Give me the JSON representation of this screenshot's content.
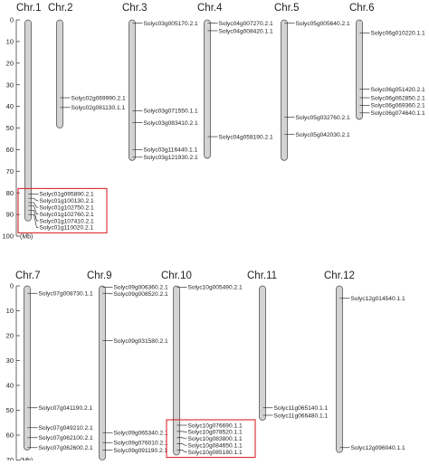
{
  "panels": [
    {
      "axis": {
        "ticks": [
          "0",
          "10",
          "20",
          "30",
          "40",
          "50",
          "60",
          "70",
          "80",
          "90",
          "100"
        ],
        "unit": "(Mb)"
      },
      "chromosomes": [
        {
          "name": "Chr.1",
          "length": 93,
          "genes": [
            {
              "label": "Solyc01g095890.2.1",
              "pos": 80.5
            },
            {
              "label": "Solyc01g100130.2.1",
              "pos": 82.5
            },
            {
              "label": "Solyc01g102750.2.1",
              "pos": 84.5
            },
            {
              "label": "Solyc01g102760.2.1",
              "pos": 86
            },
            {
              "label": "Solyc01g107410.2.1",
              "pos": 88
            },
            {
              "label": "Solyc01g110020.2.1",
              "pos": 90
            }
          ]
        },
        {
          "name": "Chr.2",
          "length": 50,
          "genes": [
            {
              "label": "Solyc02g069990.2.1",
              "pos": 36
            },
            {
              "label": "Solyc02g081130.1.1",
              "pos": 40.5
            }
          ]
        },
        {
          "name": "Chr.3",
          "length": 65,
          "genes": [
            {
              "label": "Solyc03g005170.2.1",
              "pos": 1.5
            },
            {
              "label": "Solyc03g071550.1.1",
              "pos": 42
            },
            {
              "label": "Solyc03g083410.2.1",
              "pos": 47.5
            },
            {
              "label": "Solyc03g116440.1.1",
              "pos": 60
            },
            {
              "label": "Solyc03g121930.2.1",
              "pos": 63.5
            }
          ]
        },
        {
          "name": "Chr.4",
          "length": 64,
          "genes": [
            {
              "label": "Solyc04g007270.2.1",
              "pos": 1.5
            },
            {
              "label": "Solyc04g008420.1.1",
              "pos": 5
            },
            {
              "label": "Solyc04g058190.2.1",
              "pos": 54
            }
          ]
        },
        {
          "name": "Chr.5",
          "length": 65,
          "genes": [
            {
              "label": "Solyc05g005640.2.1",
              "pos": 1.5
            },
            {
              "label": "Solyc05g032760.2.1",
              "pos": 45
            },
            {
              "label": "Solyc05g042030.2.1",
              "pos": 53
            }
          ]
        },
        {
          "name": "Chr.6",
          "length": 46,
          "genes": [
            {
              "label": "Solyc06g010220.1.1",
              "pos": 6
            },
            {
              "label": "Solyc06g051420.2.1",
              "pos": 32
            },
            {
              "label": "Solyc06g062850.2.1",
              "pos": 36
            },
            {
              "label": "Solyc06g069360.2.1",
              "pos": 39.5
            },
            {
              "label": "Solyc06g074640.1.1",
              "pos": 43
            }
          ]
        }
      ],
      "highlight": {
        "chromosome": 0,
        "from_gene": 0,
        "to_gene": 5
      }
    },
    {
      "axis": {
        "ticks": [
          "0",
          "10",
          "20",
          "30",
          "40",
          "50",
          "60",
          "70"
        ],
        "unit": "(Mb)"
      },
      "chromosomes": [
        {
          "name": "Chr.7",
          "length": 66,
          "genes": [
            {
              "label": "Solyc07g008730.1.1",
              "pos": 3
            },
            {
              "label": "Solyc07g041190.2.1",
              "pos": 49
            },
            {
              "label": "Solyc07g049210.2.1",
              "pos": 57
            },
            {
              "label": "Solyc07g062100.2.1",
              "pos": 61
            },
            {
              "label": "Solyc07g062600.2.1",
              "pos": 65
            }
          ]
        },
        {
          "name": "Chr.9",
          "length": 70,
          "genes": [
            {
              "label": "Solyc09g006360.2.1",
              "pos": 0.5
            },
            {
              "label": "Solyc09g008520.2.1",
              "pos": 3
            },
            {
              "label": "Solyc09g031580.2.1",
              "pos": 22
            },
            {
              "label": "Solyc09g065340.2.1",
              "pos": 59
            },
            {
              "label": "Solyc09g076010.2.1",
              "pos": 63
            },
            {
              "label": "Solyc09g091190.2.1",
              "pos": 66
            }
          ]
        },
        {
          "name": "Chr.10",
          "length": 68,
          "genes": [
            {
              "label": "Solyc10g005490.2.1",
              "pos": 0.5
            },
            {
              "label": "Solyc10g076690.1.1",
              "pos": 56
            },
            {
              "label": "Solyc10g078520.1.1",
              "pos": 58.5
            },
            {
              "label": "Solyc10g083800.1.1",
              "pos": 61
            },
            {
              "label": "Solyc10g084650.1.1",
              "pos": 63.5
            },
            {
              "label": "Solyc10g085180.1.1",
              "pos": 66
            }
          ]
        },
        {
          "name": "Chr.11",
          "length": 54,
          "genes": [
            {
              "label": "Solyc11g065140.1.1",
              "pos": 49
            },
            {
              "label": "Solyc11g066480.1.1",
              "pos": 52
            }
          ]
        },
        {
          "name": "Chr.12",
          "length": 67,
          "genes": [
            {
              "label": "Solyc12g014540.1.1",
              "pos": 5
            },
            {
              "label": "Solyc12g096040.1.1",
              "pos": 65
            }
          ]
        }
      ],
      "highlight": {
        "chromosome": 2,
        "from_gene": 1,
        "to_gene": 5
      }
    }
  ]
}
